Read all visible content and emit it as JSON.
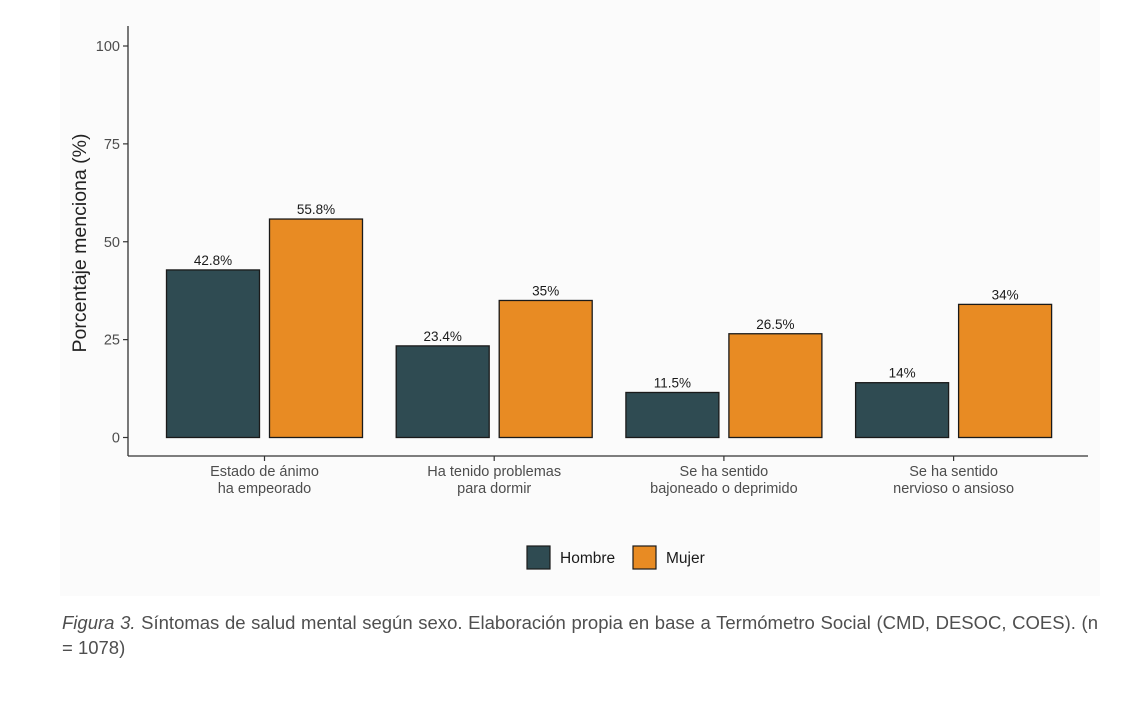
{
  "chart_data": {
    "type": "bar",
    "ylabel": "Porcentaje menciona (%)",
    "xlabel": "",
    "ylim": [
      0,
      100
    ],
    "yticks": [
      0,
      25,
      50,
      75,
      100
    ],
    "grid": false,
    "legend_position": "bottom",
    "categories": [
      [
        "Estado de ánimo",
        "ha empeorado"
      ],
      [
        "Ha tenido problemas",
        "para dormir"
      ],
      [
        "Se ha sentido",
        "bajoneado o deprimido"
      ],
      [
        "Se ha sentido",
        "nervioso  o ansioso"
      ]
    ],
    "series": [
      {
        "name": "Hombre",
        "color": "#2f4b52",
        "values": [
          42.8,
          23.4,
          11.5,
          14
        ],
        "labels": [
          "42.8%",
          "23.4%",
          "11.5%",
          "14%"
        ]
      },
      {
        "name": "Mujer",
        "color": "#e88b23",
        "values": [
          55.8,
          35,
          26.5,
          34
        ],
        "labels": [
          "55.8%",
          "35%",
          "26.5%",
          "34%"
        ]
      }
    ]
  },
  "caption": {
    "figure_label": "Figura 3.",
    "text": " Síntomas de salud mental según sexo. Elaboración propia en base a Termómetro Social (CMD, DESOC, COES). (n = 1078)"
  }
}
